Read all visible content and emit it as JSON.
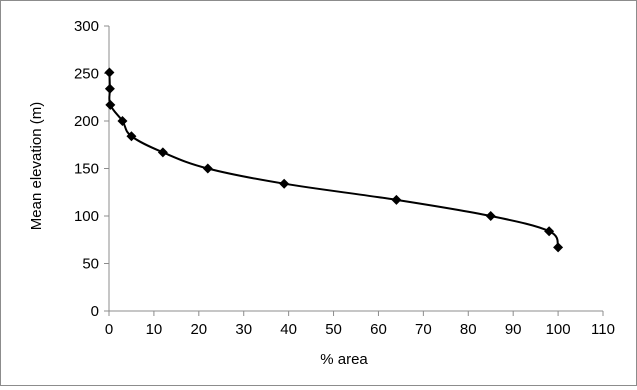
{
  "chart_data": {
    "type": "scatter",
    "title": "",
    "xlabel": "% area",
    "ylabel": "Mean elevation (m)",
    "xlim": [
      0,
      110
    ],
    "ylim": [
      0,
      300
    ],
    "x_ticks": [
      "0",
      "10",
      "20",
      "30",
      "40",
      "50",
      "60",
      "70",
      "80",
      "90",
      "100",
      "110"
    ],
    "y_ticks": [
      "0",
      "50",
      "100",
      "150",
      "200",
      "250",
      "300"
    ],
    "grid": false,
    "legend": "none",
    "marker": "diamond",
    "colors": {
      "line": "#000000",
      "marker": "#000000",
      "axis": "#8c8c8c"
    },
    "series": [
      {
        "x": [
          0.1,
          0.2,
          0.3,
          3,
          5,
          12,
          22,
          39,
          64,
          85,
          98,
          100
        ],
        "y": [
          251,
          234,
          217,
          200,
          184,
          167,
          150,
          134,
          117,
          100,
          84,
          67
        ]
      }
    ]
  }
}
